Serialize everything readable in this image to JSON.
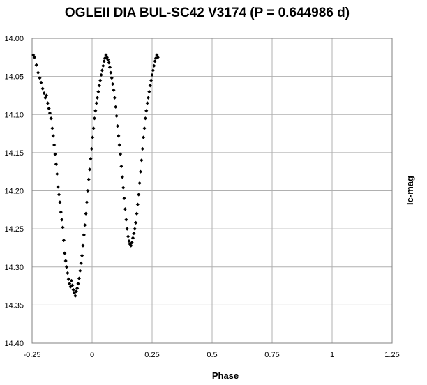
{
  "chart_data": {
    "type": "scatter",
    "title": "OGLEII DIA BUL-SC42 V3174 (P = 0.644986 d)",
    "xlabel": "Phase",
    "ylabel": "Ic-mag",
    "xlim": [
      -0.25,
      1.25
    ],
    "ylim": [
      14.4,
      14.0
    ],
    "y_inverted": true,
    "grid": true,
    "legend": "none",
    "marker": "diamond",
    "marker_color": "#000000",
    "x_ticks": [
      "-0.25",
      "0",
      "0.25",
      "0.5",
      "0.75",
      "1",
      "1.25"
    ],
    "y_ticks": [
      "14.00",
      "14.05",
      "14.10",
      "14.15",
      "14.20",
      "14.25",
      "14.30",
      "14.35",
      "14.40"
    ],
    "points": [
      [
        -0.245,
        14.022
      ],
      [
        -0.24,
        14.025
      ],
      [
        -0.232,
        14.035
      ],
      [
        -0.225,
        14.045
      ],
      [
        -0.218,
        14.052
      ],
      [
        -0.212,
        14.058
      ],
      [
        -0.206,
        14.066
      ],
      [
        -0.2,
        14.072
      ],
      [
        -0.195,
        14.078
      ],
      [
        -0.19,
        14.075
      ],
      [
        -0.185,
        14.085
      ],
      [
        -0.18,
        14.092
      ],
      [
        -0.176,
        14.098
      ],
      [
        -0.171,
        14.105
      ],
      [
        -0.166,
        14.118
      ],
      [
        -0.162,
        14.128
      ],
      [
        -0.158,
        14.14
      ],
      [
        -0.154,
        14.152
      ],
      [
        -0.15,
        14.165
      ],
      [
        -0.146,
        14.178
      ],
      [
        -0.142,
        14.195
      ],
      [
        -0.138,
        14.205
      ],
      [
        -0.134,
        14.215
      ],
      [
        -0.13,
        14.228
      ],
      [
        -0.126,
        14.238
      ],
      [
        -0.122,
        14.248
      ],
      [
        -0.118,
        14.265
      ],
      [
        -0.114,
        14.282
      ],
      [
        -0.11,
        14.292
      ],
      [
        -0.106,
        14.3
      ],
      [
        -0.102,
        14.308
      ],
      [
        -0.098,
        14.316
      ],
      [
        -0.094,
        14.322
      ],
      [
        -0.09,
        14.326
      ],
      [
        -0.086,
        14.318
      ],
      [
        -0.082,
        14.324
      ],
      [
        -0.078,
        14.33
      ],
      [
        -0.074,
        14.334
      ],
      [
        -0.07,
        14.338
      ],
      [
        -0.066,
        14.332
      ],
      [
        -0.062,
        14.328
      ],
      [
        -0.058,
        14.322
      ],
      [
        -0.054,
        14.315
      ],
      [
        -0.05,
        14.305
      ],
      [
        -0.046,
        14.295
      ],
      [
        -0.042,
        14.285
      ],
      [
        -0.038,
        14.272
      ],
      [
        -0.034,
        14.258
      ],
      [
        -0.03,
        14.245
      ],
      [
        -0.026,
        14.23
      ],
      [
        -0.022,
        14.215
      ],
      [
        -0.018,
        14.2
      ],
      [
        -0.014,
        14.185
      ],
      [
        -0.01,
        14.172
      ],
      [
        -0.006,
        14.158
      ],
      [
        -0.002,
        14.145
      ],
      [
        0.002,
        14.13
      ],
      [
        0.006,
        14.118
      ],
      [
        0.01,
        14.105
      ],
      [
        0.014,
        14.095
      ],
      [
        0.018,
        14.085
      ],
      [
        0.022,
        14.078
      ],
      [
        0.026,
        14.07
      ],
      [
        0.03,
        14.062
      ],
      [
        0.034,
        14.055
      ],
      [
        0.038,
        14.048
      ],
      [
        0.042,
        14.042
      ],
      [
        0.046,
        14.036
      ],
      [
        0.05,
        14.03
      ],
      [
        0.054,
        14.026
      ],
      [
        0.058,
        14.022
      ],
      [
        0.062,
        14.025
      ],
      [
        0.066,
        14.028
      ],
      [
        0.07,
        14.032
      ],
      [
        0.074,
        14.038
      ],
      [
        0.078,
        14.045
      ],
      [
        0.082,
        14.052
      ],
      [
        0.086,
        14.06
      ],
      [
        0.09,
        14.068
      ],
      [
        0.094,
        14.078
      ],
      [
        0.098,
        14.09
      ],
      [
        0.102,
        14.102
      ],
      [
        0.106,
        14.115
      ],
      [
        0.11,
        14.128
      ],
      [
        0.114,
        14.14
      ],
      [
        0.118,
        14.152
      ],
      [
        0.122,
        14.168
      ],
      [
        0.126,
        14.182
      ],
      [
        0.13,
        14.196
      ],
      [
        0.134,
        14.21
      ],
      [
        0.138,
        14.224
      ],
      [
        0.142,
        14.238
      ],
      [
        0.146,
        14.25
      ],
      [
        0.15,
        14.26
      ],
      [
        0.154,
        14.266
      ],
      [
        0.158,
        14.27
      ],
      [
        0.162,
        14.272
      ],
      [
        0.166,
        14.268
      ],
      [
        0.17,
        14.262
      ],
      [
        0.174,
        14.256
      ],
      [
        0.178,
        14.25
      ],
      [
        0.182,
        14.242
      ],
      [
        0.186,
        14.23
      ],
      [
        0.19,
        14.218
      ],
      [
        0.194,
        14.205
      ],
      [
        0.198,
        14.19
      ],
      [
        0.202,
        14.175
      ],
      [
        0.206,
        14.16
      ],
      [
        0.21,
        14.145
      ],
      [
        0.214,
        14.13
      ],
      [
        0.218,
        14.118
      ],
      [
        0.222,
        14.105
      ],
      [
        0.226,
        14.095
      ],
      [
        0.23,
        14.085
      ],
      [
        0.234,
        14.078
      ],
      [
        0.238,
        14.07
      ],
      [
        0.242,
        14.062
      ],
      [
        0.246,
        14.055
      ],
      [
        0.25,
        14.048
      ],
      [
        0.254,
        14.042
      ],
      [
        0.258,
        14.036
      ],
      [
        0.262,
        14.03
      ],
      [
        0.266,
        14.026
      ],
      [
        0.27,
        14.022
      ],
      [
        0.274,
        14.025
      ]
    ]
  }
}
